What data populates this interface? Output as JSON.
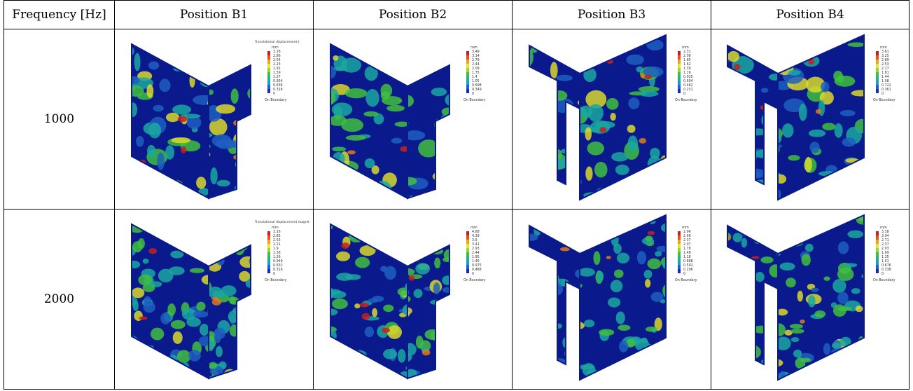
{
  "table": {
    "corner": "Frequency [Hz]",
    "columns": [
      "Position B1",
      "Position B2",
      "Position B3",
      "Position B4"
    ],
    "rows": [
      {
        "label": "1000",
        "cells": [
          {
            "legend_title": "Translational displacement t",
            "unit": "mm",
            "values": [
              "3.18",
              "2.86",
              "2.54",
              "2.23",
              "1.91",
              "1.59",
              "1.27",
              "0.954",
              "0.636",
              "0.318",
              "0"
            ],
            "footer": "On Boundary",
            "door": "right"
          },
          {
            "legend_title": "",
            "unit": "mm",
            "values": [
              "3.49",
              "3.14",
              "2.79",
              "2.44",
              "2.09",
              "1.75",
              "1.4",
              "1.05",
              "0.698",
              "0.349",
              "0"
            ],
            "footer": "On Boundary",
            "door": "right"
          },
          {
            "legend_title": "",
            "unit": "mm",
            "values": [
              "2.31",
              "2.08",
              "1.85",
              "1.62",
              "1.39",
              "1.16",
              "0.925",
              "0.694",
              "0.462",
              "0.231",
              "0"
            ],
            "footer": "On Boundary",
            "door": "left"
          },
          {
            "legend_title": "",
            "unit": "mm",
            "values": [
              "3.61",
              "3.25",
              "2.89",
              "2.53",
              "2.17",
              "1.81",
              "1.44",
              "1.08",
              "0.722",
              "0.361",
              "0"
            ],
            "footer": "On Boundary",
            "door": "left"
          }
        ]
      },
      {
        "label": "2000",
        "cells": [
          {
            "legend_title": "Translational displacement magnit",
            "unit": "mm",
            "values": [
              "3.16",
              "2.85",
              "2.53",
              "2.21",
              "1.9",
              "1.58",
              "1.26",
              "0.949",
              "0.632",
              "0.316",
              "0"
            ],
            "footer": "On Boundary",
            "door": "right"
          },
          {
            "legend_title": "",
            "unit": "mm",
            "values": [
              "4.88",
              "4.39",
              "3.9",
              "3.41",
              "2.93",
              "2.44",
              "1.95",
              "1.46",
              "0.975",
              "0.488",
              "0"
            ],
            "footer": "On Boundary",
            "door": "right"
          },
          {
            "legend_title": "",
            "unit": "mm",
            "values": [
              "2.96",
              "2.66",
              "2.37",
              "2.07",
              "1.78",
              "1.48",
              "1.18",
              "0.888",
              "0.592",
              "0.296",
              "0"
            ],
            "footer": "On Boundary",
            "door": "left"
          },
          {
            "legend_title": "",
            "unit": "mm",
            "values": [
              "3.38",
              "3.04",
              "2.71",
              "2.37",
              "2.03",
              "1.69",
              "1.35",
              "1.01",
              "0.676",
              "0.338",
              "0"
            ],
            "footer": "On Boundary",
            "door": "left"
          }
        ]
      }
    ]
  },
  "colors": {
    "field_dark": "#0a1a8c",
    "field_mid": "#1f5fbf",
    "field_teal": "#1aa7a0",
    "field_green": "#3fbf3f",
    "field_yellow": "#d9d92a",
    "field_orange": "#e07a1a",
    "field_red": "#c81e1e",
    "legend_scale": [
      "#c81e1e",
      "#e4541a",
      "#f0a020",
      "#e6e62a",
      "#9ad23c",
      "#3fbf3f",
      "#20b28a",
      "#1a9ec8",
      "#1a5fd6",
      "#1a2ab0"
    ]
  }
}
